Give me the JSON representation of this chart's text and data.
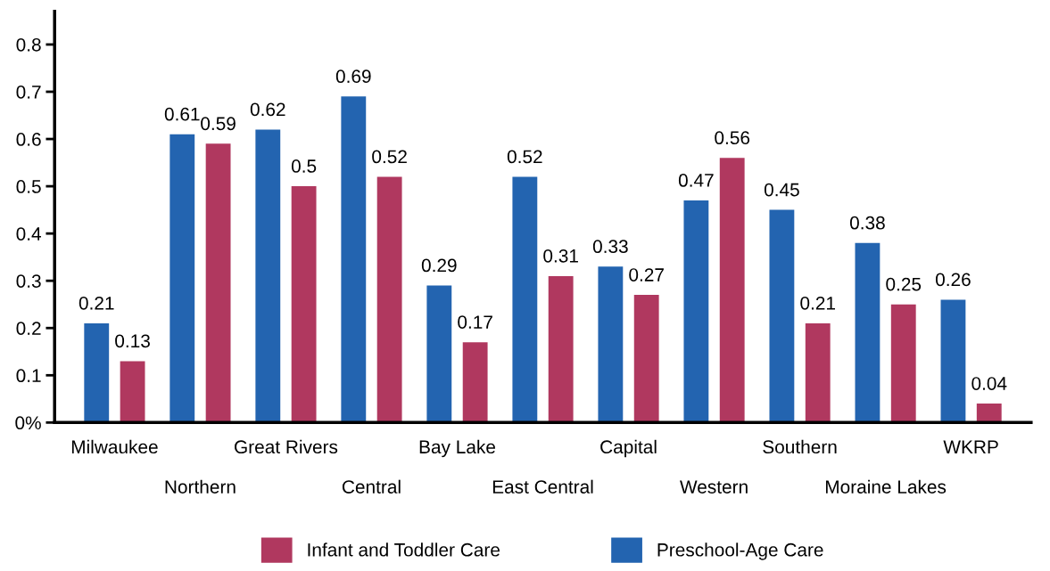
{
  "chart_data": {
    "type": "bar",
    "categories": [
      "Milwaukee",
      "Northern",
      "Great Rivers",
      "Central",
      "Bay Lake",
      "East Central",
      "Capital",
      "Western",
      "Southern",
      "Moraine Lakes",
      "WKRP"
    ],
    "series": [
      {
        "name": "Preschool-Age Care",
        "color": "#2364b0",
        "values": [
          0.21,
          0.61,
          0.62,
          0.69,
          0.29,
          0.52,
          0.33,
          0.47,
          0.45,
          0.38,
          0.26
        ]
      },
      {
        "name": "Infant and Toddler Care",
        "color": "#b0385f",
        "values": [
          0.13,
          0.59,
          0.5,
          0.52,
          0.17,
          0.31,
          0.27,
          0.56,
          0.21,
          0.25,
          0.04
        ]
      }
    ],
    "ylim": [
      0,
      0.87
    ],
    "yticks": [
      {
        "value": 0,
        "label": "0%"
      },
      0.1,
      0.2,
      0.3,
      0.4,
      0.5,
      0.6,
      0.7,
      0.8
    ],
    "data_labels": true,
    "legend": "bottom",
    "grid": false
  }
}
